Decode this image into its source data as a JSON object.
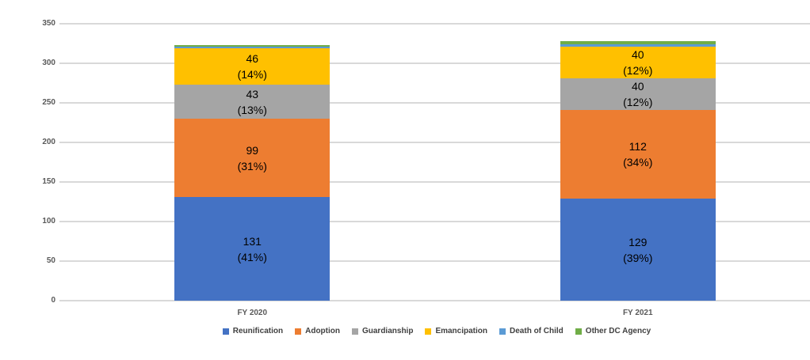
{
  "chart_data": {
    "type": "bar",
    "variant": "stacked-column",
    "title": "",
    "categories": [
      "FY 2020",
      "FY 2021"
    ],
    "series": [
      {
        "name": "Reunification",
        "color": "#4472C4",
        "values": [
          131,
          129
        ],
        "pct_labels": [
          "(41%)",
          "(39%)"
        ],
        "labeled": true
      },
      {
        "name": "Adoption",
        "color": "#ED7D31",
        "values": [
          99,
          112
        ],
        "pct_labels": [
          "(31%)",
          "(34%)"
        ],
        "labeled": true
      },
      {
        "name": "Guardianship",
        "color": "#A5A5A5",
        "values": [
          43,
          40
        ],
        "pct_labels": [
          "(13%)",
          "(12%)"
        ],
        "labeled": true
      },
      {
        "name": "Emancipation",
        "color": "#FFC000",
        "values": [
          46,
          40
        ],
        "pct_labels": [
          "(14%)",
          "(12%)"
        ],
        "labeled": true
      },
      {
        "name": "Death of Child",
        "color": "#5B9BD5",
        "values": [
          2,
          3
        ],
        "pct_labels": [
          null,
          null
        ],
        "labeled": false
      },
      {
        "name": "Other DC Agency",
        "color": "#70AD47",
        "values": [
          2,
          4
        ],
        "pct_labels": [
          null,
          null
        ],
        "labeled": false
      }
    ],
    "y_axis": {
      "min": 0,
      "max": 350,
      "step": 50,
      "tick_labels": [
        "0",
        "50",
        "100",
        "150",
        "200",
        "250",
        "300",
        "350"
      ]
    },
    "x_axis": {
      "tick_labels": [
        "FY 2020",
        "FY 2021"
      ]
    },
    "grid": true,
    "legend_position": "bottom"
  },
  "palette": {
    "background": "#FFFFFF",
    "gridline": "#D9D9D9",
    "axis_text": "#595959",
    "legend_text": "#404040",
    "data_label_text": "#000000"
  }
}
